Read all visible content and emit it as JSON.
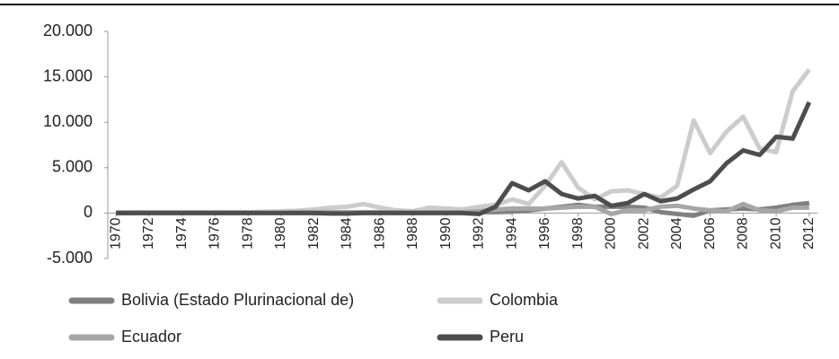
{
  "chart_data": {
    "type": "line",
    "x": [
      1970,
      1971,
      1972,
      1973,
      1974,
      1975,
      1976,
      1977,
      1978,
      1979,
      1980,
      1981,
      1982,
      1983,
      1984,
      1985,
      1986,
      1987,
      1988,
      1989,
      1990,
      1991,
      1992,
      1993,
      1994,
      1995,
      1996,
      1997,
      1998,
      1999,
      2000,
      2001,
      2002,
      2003,
      2004,
      2005,
      2006,
      2007,
      2008,
      2009,
      2010,
      2011,
      2012
    ],
    "xlim": [
      1969.5,
      2012.5
    ],
    "xticks": [
      1970,
      1972,
      1974,
      1976,
      1978,
      1980,
      1982,
      1984,
      1986,
      1988,
      1990,
      1992,
      1994,
      1996,
      1998,
      2000,
      2002,
      2004,
      2006,
      2008,
      2010,
      2012
    ],
    "ylim": [
      -5000,
      20000
    ],
    "yticks": [
      {
        "value": -5000,
        "label": "-5.000"
      },
      0,
      {
        "value": 5000,
        "label": "5.000"
      },
      {
        "value": 10000,
        "label": "10.000"
      },
      {
        "value": 15000,
        "label": "15.000"
      },
      {
        "value": 20000,
        "label": "20.000"
      }
    ],
    "legend": "bottom",
    "series": [
      {
        "name": "Bolivia (Estado Plurinacional de)",
        "color": "#808080",
        "values": [
          0,
          0,
          50,
          50,
          50,
          50,
          50,
          50,
          50,
          50,
          50,
          50,
          50,
          50,
          50,
          50,
          50,
          50,
          50,
          50,
          50,
          50,
          100,
          100,
          150,
          300,
          500,
          700,
          900,
          700,
          700,
          700,
          600,
          100,
          -100,
          -300,
          300,
          400,
          500,
          400,
          600,
          900,
          1100
        ]
      },
      {
        "name": "Colombia",
        "color": "#cccccc",
        "values": [
          100,
          100,
          100,
          100,
          100,
          100,
          100,
          100,
          100,
          150,
          200,
          250,
          400,
          600,
          700,
          1000,
          600,
          300,
          200,
          600,
          500,
          400,
          700,
          900,
          1500,
          1000,
          3000,
          5600,
          2800,
          1500,
          2400,
          2500,
          2100,
          1700,
          3000,
          10200,
          6600,
          9000,
          10600,
          7100,
          6700,
          13400,
          15800
        ]
      },
      {
        "name": "Ecuador",
        "color": "#a6a6a6",
        "values": [
          0,
          50,
          50,
          50,
          50,
          50,
          50,
          50,
          50,
          50,
          50,
          100,
          100,
          100,
          100,
          100,
          100,
          100,
          100,
          100,
          100,
          100,
          200,
          400,
          500,
          500,
          500,
          600,
          700,
          700,
          -100,
          300,
          300,
          700,
          800,
          500,
          300,
          200,
          1000,
          300,
          200,
          600,
          600
        ]
      },
      {
        "name": "Peru",
        "color": "#4d4d4d",
        "values": [
          0,
          0,
          0,
          0,
          0,
          0,
          0,
          0,
          0,
          0,
          0,
          0,
          0,
          -50,
          -50,
          0,
          0,
          0,
          0,
          0,
          0,
          0,
          -100,
          700,
          3300,
          2500,
          3500,
          2100,
          1600,
          1900,
          800,
          1100,
          2100,
          1300,
          1600,
          2600,
          3500,
          5500,
          6900,
          6400,
          8400,
          8200,
          12200
        ]
      }
    ]
  }
}
